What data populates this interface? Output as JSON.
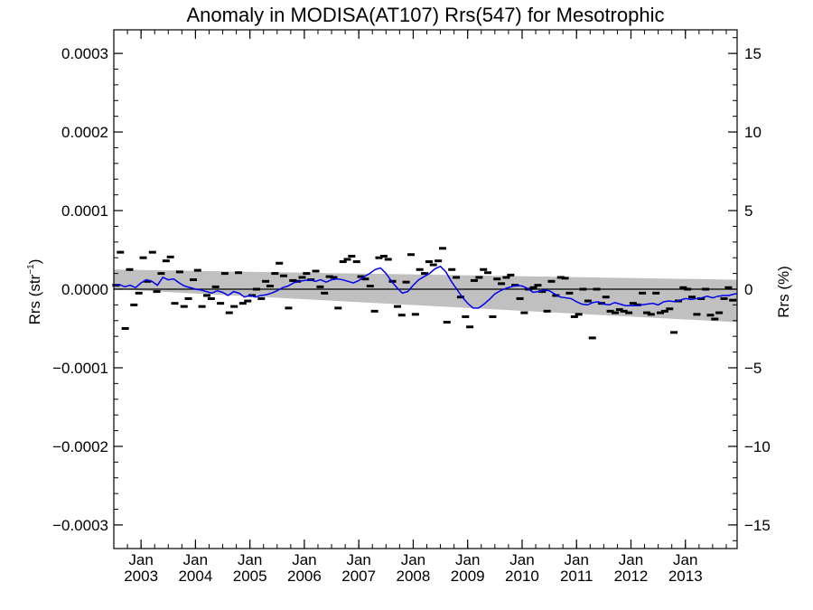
{
  "chart_data": {
    "type": "line",
    "title": "Anomaly in MODISA(AT107) Rrs(547) for Mesotrophic",
    "ylabel_left": {
      "base": "Rrs (str",
      "sup": "−1",
      "close": ")"
    },
    "ylabel_right": "Rrs (%)",
    "x_range": [
      2002.5,
      2013.95
    ],
    "ylim_left": [
      -0.00033,
      0.00033
    ],
    "ylim_right": [
      -16.5,
      16.5
    ],
    "y_ticks_left": [
      {
        "value": 0.0003,
        "label": "0.0003"
      },
      {
        "value": 0.0002,
        "label": "0.0002"
      },
      {
        "value": 0.0001,
        "label": "0.0001"
      },
      {
        "value": 0.0,
        "label": "0.0000"
      },
      {
        "value": -0.0001,
        "label": "−0.0001"
      },
      {
        "value": -0.0002,
        "label": "−0.0002"
      },
      {
        "value": -0.0003,
        "label": "−0.0003"
      }
    ],
    "y_ticks_right": [
      {
        "value": 15,
        "label": "15"
      },
      {
        "value": 10,
        "label": "10"
      },
      {
        "value": 5,
        "label": "5"
      },
      {
        "value": 0,
        "label": "0"
      },
      {
        "value": -5,
        "label": "−5"
      },
      {
        "value": -10,
        "label": "−10"
      },
      {
        "value": -15,
        "label": "−15"
      }
    ],
    "x_ticks": [
      {
        "value": 2003.0,
        "month": "Jan",
        "year": "2003"
      },
      {
        "value": 2004.0,
        "month": "Jan",
        "year": "2004"
      },
      {
        "value": 2005.0,
        "month": "Jan",
        "year": "2005"
      },
      {
        "value": 2006.0,
        "month": "Jan",
        "year": "2006"
      },
      {
        "value": 2007.0,
        "month": "Jan",
        "year": "2007"
      },
      {
        "value": 2008.0,
        "month": "Jan",
        "year": "2008"
      },
      {
        "value": 2009.0,
        "month": "Jan",
        "year": "2009"
      },
      {
        "value": 2010.0,
        "month": "Jan",
        "year": "2010"
      },
      {
        "value": 2011.0,
        "month": "Jan",
        "year": "2011"
      },
      {
        "value": 2012.0,
        "month": "Jan",
        "year": "2012"
      },
      {
        "value": 2013.0,
        "month": "Jan",
        "year": "2013"
      }
    ],
    "confidence_band": {
      "x": [
        2002.5,
        2013.95
      ],
      "upper": [
        2.5e-05,
        1.2e-05
      ],
      "lower": [
        0.0,
        -4.2e-05
      ]
    },
    "zero_line": 0.0,
    "monthly_anomalies": {
      "x": [
        2002.54,
        2002.62,
        2002.71,
        2002.79,
        2002.87,
        2002.96,
        2003.04,
        2003.12,
        2003.21,
        2003.29,
        2003.37,
        2003.46,
        2003.54,
        2003.62,
        2003.71,
        2003.79,
        2003.87,
        2003.96,
        2004.04,
        2004.12,
        2004.21,
        2004.29,
        2004.37,
        2004.46,
        2004.54,
        2004.62,
        2004.71,
        2004.79,
        2004.87,
        2004.96,
        2005.04,
        2005.12,
        2005.21,
        2005.29,
        2005.37,
        2005.46,
        2005.54,
        2005.62,
        2005.71,
        2005.79,
        2005.87,
        2005.96,
        2006.04,
        2006.12,
        2006.21,
        2006.29,
        2006.37,
        2006.46,
        2006.54,
        2006.62,
        2006.71,
        2006.79,
        2006.87,
        2006.96,
        2007.04,
        2007.12,
        2007.21,
        2007.29,
        2007.37,
        2007.46,
        2007.54,
        2007.62,
        2007.71,
        2007.79,
        2007.87,
        2007.96,
        2008.04,
        2008.12,
        2008.21,
        2008.29,
        2008.37,
        2008.46,
        2008.54,
        2008.62,
        2008.71,
        2008.79,
        2008.87,
        2008.96,
        2009.04,
        2009.12,
        2009.21,
        2009.29,
        2009.37,
        2009.46,
        2009.54,
        2009.62,
        2009.71,
        2009.79,
        2009.87,
        2009.96,
        2010.04,
        2010.12,
        2010.21,
        2010.29,
        2010.37,
        2010.46,
        2010.54,
        2010.62,
        2010.71,
        2010.79,
        2010.87,
        2010.96,
        2011.04,
        2011.12,
        2011.21,
        2011.29,
        2011.37,
        2011.46,
        2011.54,
        2011.62,
        2011.71,
        2011.79,
        2011.87,
        2011.96,
        2012.04,
        2012.12,
        2012.21,
        2012.29,
        2012.37,
        2012.46,
        2012.54,
        2012.62,
        2012.71,
        2012.79,
        2012.87,
        2012.96,
        2013.04,
        2013.12,
        2013.21,
        2013.29,
        2013.37,
        2013.46,
        2013.54,
        2013.62,
        2013.71,
        2013.79,
        2013.87
      ],
      "y": [
        5e-06,
        4.7e-05,
        -5e-05,
        2.5e-05,
        -2e-05,
        -5e-06,
        4e-05,
        1e-05,
        4.7e-05,
        -3e-06,
        2e-05,
        3.6e-05,
        4.1e-05,
        -1.8e-05,
        2.2e-05,
        -2.2e-05,
        -1.2e-05,
        1.2e-05,
        2.4e-05,
        -2.2e-05,
        -8e-06,
        -1.2e-05,
        3e-06,
        -1.8e-05,
        2e-05,
        -3e-05,
        -2.2e-05,
        2.1e-05,
        -1.8e-05,
        -1.5e-05,
        -8e-06,
        0.0,
        -1.2e-05,
        1e-05,
        4e-06,
        2e-05,
        3.3e-05,
        1.7e-05,
        -2.4e-05,
        1.1e-05,
        1e-05,
        1.5e-05,
        2e-05,
        1.2e-05,
        2.3e-05,
        3e-06,
        -5e-06,
        1.6e-05,
        1.5e-05,
        -2.4e-05,
        3.5e-05,
        3.8e-05,
        4.2e-05,
        3.5e-05,
        1.6e-05,
        1.3e-05,
        4e-06,
        -2.8e-05,
        4e-05,
        4.2e-05,
        3.8e-05,
        1e-05,
        -2.2e-05,
        -3.3e-05,
        9e-06,
        4.4e-05,
        -3.2e-05,
        2.5e-05,
        2e-05,
        3.5e-05,
        3.1e-05,
        3.6e-05,
        5.2e-05,
        -4.2e-05,
        2.5e-05,
        1.5e-05,
        -1e-05,
        -3.5e-05,
        -4.8e-05,
        1.1e-05,
        1.5e-05,
        2.5e-05,
        2.1e-05,
        -3.5e-05,
        1.3e-05,
        7e-06,
        1.5e-05,
        1.8e-05,
        5e-06,
        -1.2e-05,
        -3e-05,
        0.0,
        2e-06,
        5e-06,
        -3e-06,
        -2.8e-05,
        1e-05,
        -8e-06,
        1.5e-05,
        1.4e-05,
        -5e-06,
        -3.5e-05,
        -3.2e-05,
        0.0,
        -1.5e-05,
        -6.2e-05,
        0.0,
        -1.8e-05,
        -1e-05,
        -2.8e-05,
        -3e-05,
        -2.6e-05,
        -2.8e-05,
        -3e-05,
        -1.8e-05,
        -2e-05,
        -5e-06,
        -3e-05,
        -3.2e-05,
        -5e-06,
        -3e-05,
        -2.8e-05,
        -2.5e-05,
        -5.5e-05,
        -1.5e-05,
        2e-06,
        0.0,
        -1e-05,
        -3.2e-05,
        -1.2e-05,
        0.0,
        -3.3e-05,
        -3.8e-05,
        -3e-05,
        -1.2e-05,
        2e-06,
        -1.4e-05
      ]
    },
    "smoothed_series": {
      "name": "",
      "color": "#0000ee",
      "x": [
        2002.5,
        2002.6,
        2002.7,
        2002.8,
        2002.9,
        2003.0,
        2003.1,
        2003.2,
        2003.3,
        2003.4,
        2003.5,
        2003.6,
        2003.7,
        2003.8,
        2003.9,
        2004.0,
        2004.1,
        2004.2,
        2004.3,
        2004.4,
        2004.5,
        2004.6,
        2004.7,
        2004.8,
        2004.9,
        2005.0,
        2005.1,
        2005.2,
        2005.3,
        2005.4,
        2005.5,
        2005.6,
        2005.7,
        2005.8,
        2005.9,
        2006.0,
        2006.1,
        2006.2,
        2006.3,
        2006.4,
        2006.5,
        2006.6,
        2006.7,
        2006.8,
        2006.9,
        2007.0,
        2007.1,
        2007.2,
        2007.3,
        2007.4,
        2007.5,
        2007.6,
        2007.7,
        2007.8,
        2007.9,
        2008.0,
        2008.1,
        2008.2,
        2008.3,
        2008.4,
        2008.5,
        2008.6,
        2008.7,
        2008.8,
        2008.9,
        2009.0,
        2009.1,
        2009.2,
        2009.3,
        2009.4,
        2009.5,
        2009.6,
        2009.7,
        2009.8,
        2009.9,
        2010.0,
        2010.1,
        2010.2,
        2010.3,
        2010.4,
        2010.5,
        2010.6,
        2010.7,
        2010.8,
        2010.9,
        2011.0,
        2011.1,
        2011.2,
        2011.3,
        2011.4,
        2011.5,
        2011.6,
        2011.7,
        2011.8,
        2011.9,
        2012.0,
        2012.1,
        2012.2,
        2012.3,
        2012.4,
        2012.5,
        2012.6,
        2012.7,
        2012.8,
        2012.9,
        2013.0,
        2013.1,
        2013.2,
        2013.3,
        2013.4,
        2013.5,
        2013.6,
        2013.7,
        2013.8,
        2013.9,
        2013.95
      ],
      "y": [
        5e-06,
        6e-06,
        3e-06,
        5e-06,
        2e-06,
        8e-06,
        1.2e-05,
        1e-05,
        5e-06,
        1.5e-05,
        1.2e-05,
        1.3e-05,
        8e-06,
        4e-06,
        2e-06,
        0.0,
        -1e-06,
        -3e-06,
        -5e-06,
        -2e-06,
        -4e-06,
        -8e-06,
        -3e-06,
        -5e-06,
        -1e-05,
        -8e-06,
        -1e-05,
        -8e-06,
        -7e-06,
        -5e-06,
        -2e-06,
        2e-06,
        4e-06,
        8e-06,
        1e-05,
        1.1e-05,
        1.2e-05,
        1e-05,
        1.2e-05,
        9e-06,
        1.2e-05,
        1.3e-05,
        1.2e-05,
        1e-05,
        8e-06,
        1.1e-05,
        1.6e-05,
        2e-05,
        2.5e-05,
        2.7e-05,
        2e-05,
        1e-05,
        2e-06,
        -5e-06,
        -3e-06,
        5e-06,
        1.2e-05,
        1.6e-05,
        2e-05,
        2.6e-05,
        2.9e-05,
        2.2e-05,
        1e-05,
        0.0,
        -1e-05,
        -1.8e-05,
        -2.4e-05,
        -2.4e-05,
        -1.9e-05,
        -1.3e-05,
        -6e-06,
        -2e-06,
        1e-06,
        3e-06,
        5e-06,
        4e-06,
        1e-06,
        -4e-06,
        -3e-06,
        -1e-06,
        -2e-06,
        -6e-06,
        -1e-05,
        -1.1e-05,
        -1.2e-05,
        -1.6e-05,
        -1.9e-05,
        -2e-05,
        -1.7e-05,
        -1.6e-05,
        -1.9e-05,
        -2e-05,
        -1.7e-05,
        -1.9e-05,
        -2.1e-05,
        -2.1e-05,
        -2.1e-05,
        -2e-05,
        -1.9e-05,
        -1.8e-05,
        -2e-05,
        -1.6e-05,
        -1.5e-05,
        -1.6e-05,
        -1.4e-05,
        -1.2e-05,
        -1.3e-05,
        -1.2e-05,
        -1.1e-05,
        -9e-06,
        -1.1e-05,
        -9e-06,
        -8e-06,
        -8e-06,
        -6e-06,
        -6e-06
      ]
    },
    "grid": false
  }
}
